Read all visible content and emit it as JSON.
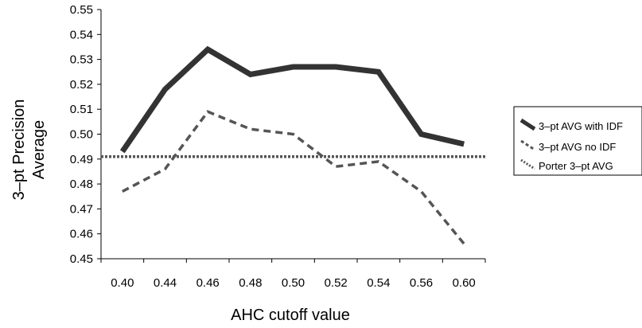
{
  "chart_data": {
    "type": "line",
    "xlabel": "AHC cutoff value",
    "ylabel": [
      "3–pt Precision",
      "Average"
    ],
    "x_tick_labels": [
      "0.40",
      "0.44",
      "0.46",
      "0.48",
      "0.50",
      "0.52",
      "0.54",
      "0.56",
      "0.60"
    ],
    "y_tick_labels": [
      "0.45",
      "0.46",
      "0.47",
      "0.48",
      "0.49",
      "0.50",
      "0.51",
      "0.52",
      "0.53",
      "0.54",
      "0.55"
    ],
    "ylim": [
      0.45,
      0.55
    ],
    "grid": false,
    "legend_position": "right",
    "series": [
      {
        "name": "3–pt AVG with IDF",
        "style": "solid-thick",
        "color": "#333333",
        "values": [
          0.493,
          0.518,
          0.534,
          0.524,
          0.527,
          0.527,
          0.525,
          0.5,
          0.496
        ]
      },
      {
        "name": "3–pt AVG no IDF",
        "style": "dashed",
        "color": "#555555",
        "values": [
          0.477,
          0.486,
          0.509,
          0.502,
          0.5,
          0.487,
          0.489,
          0.477,
          0.456
        ]
      },
      {
        "name": "Porter 3–pt AVG",
        "style": "dotted",
        "color": "#555555",
        "values": [
          0.491,
          0.491,
          0.491,
          0.491,
          0.491,
          0.491,
          0.491,
          0.491,
          0.491
        ]
      }
    ]
  }
}
